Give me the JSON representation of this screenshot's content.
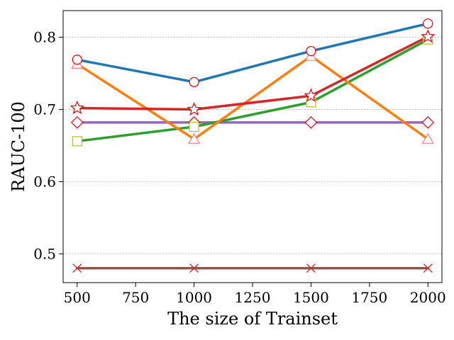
{
  "chart_data": {
    "type": "line",
    "title": "",
    "xlabel": "The size of Trainset",
    "ylabel": "RAUC-100",
    "x": [
      500,
      1000,
      1500,
      2000
    ],
    "xlim": [
      440,
      2060
    ],
    "ylim": [
      0.46,
      0.837
    ],
    "xticks": [
      500,
      750,
      1000,
      1250,
      1500,
      1750,
      2000
    ],
    "yticks": [
      0.5,
      0.6,
      0.7,
      0.8
    ],
    "xtick_labels": [
      "500",
      "750",
      "1000",
      "1250",
      "1500",
      "1750",
      "2000"
    ],
    "ytick_labels": [
      "0.5",
      "0.6",
      "0.7",
      "0.8"
    ],
    "grid": "horizontal dotted",
    "legend": "none",
    "series": [
      {
        "id": "brown",
        "values": [
          0.48,
          0.48,
          0.48,
          0.48
        ],
        "line_color": "#8c564b",
        "marker": "x",
        "marker_color": "#d62728"
      },
      {
        "id": "purple",
        "values": [
          0.682,
          0.682,
          0.682,
          0.682
        ],
        "line_color": "#9467bd",
        "marker": "diamond",
        "marker_color": "#e8000b"
      },
      {
        "id": "green",
        "values": [
          0.656,
          0.676,
          0.71,
          0.797
        ],
        "line_color": "#2ca02c",
        "marker": "square",
        "marker_color": "#bcbd22"
      },
      {
        "id": "orange",
        "values": [
          0.763,
          0.659,
          0.774,
          0.659
        ],
        "line_color": "#ff7f0e",
        "marker": "triangle",
        "marker_color": "#f08080"
      },
      {
        "id": "red",
        "values": [
          0.702,
          0.7,
          0.719,
          0.801
        ],
        "line_color": "#d62728",
        "marker": "star",
        "marker_color": "#e8000b"
      },
      {
        "id": "blue",
        "values": [
          0.769,
          0.738,
          0.781,
          0.819
        ],
        "line_color": "#1f77b4",
        "marker": "circle",
        "marker_color": "#e8000b"
      }
    ]
  }
}
